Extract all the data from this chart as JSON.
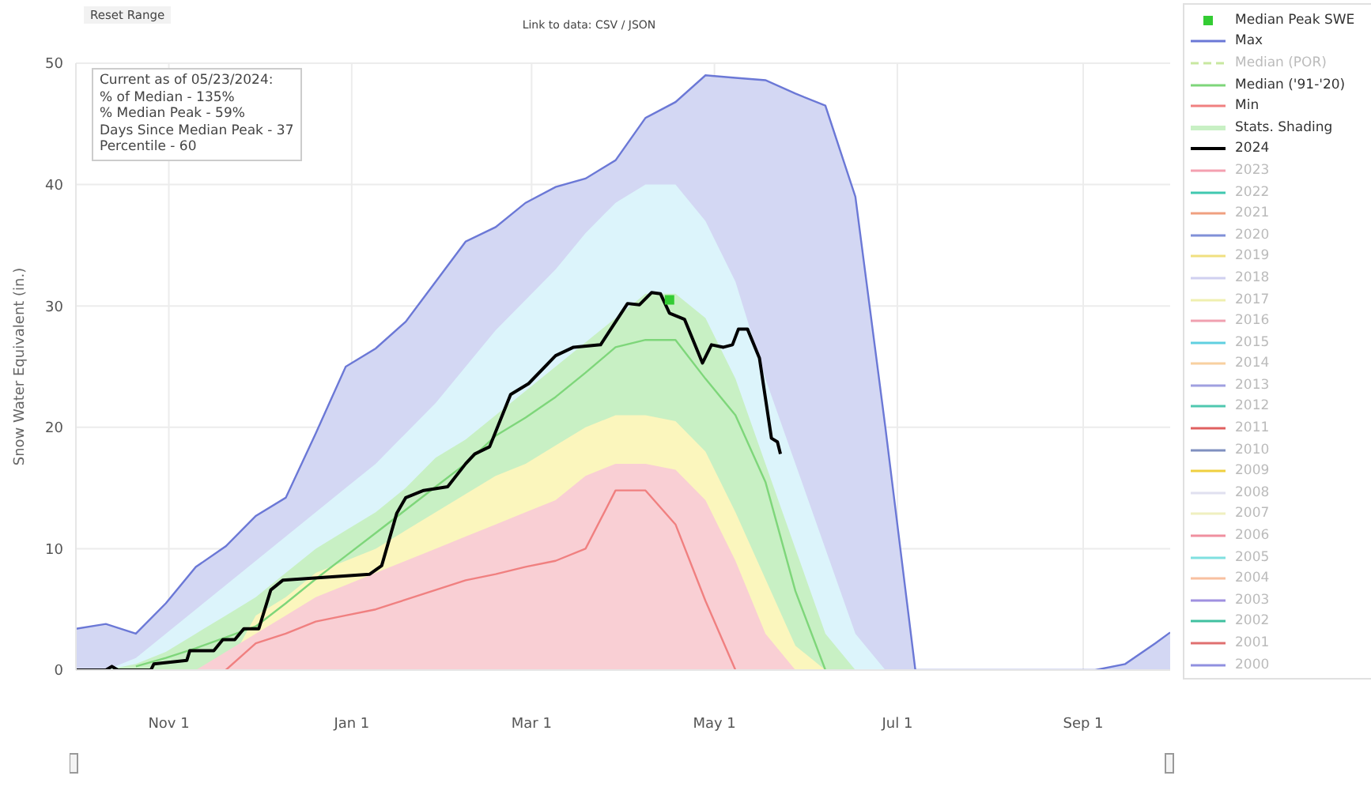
{
  "chart_data": {
    "type": "line",
    "ylabel": "Snow Water Equivalent (in.)",
    "annotations": [
      "Reset Range",
      "Link to data: CSV / JSON",
      "Current as of 05/23/2024:",
      "% of Median - 135%",
      "% Median Peak - 59%",
      "Days Since Median Peak - 37",
      "Percentile - 60"
    ],
    "x": [
      "2023-10-01",
      "2023-10-11",
      "2023-10-21",
      "2023-10-31",
      "2023-11-10",
      "2023-11-20",
      "2023-11-30",
      "2023-12-10",
      "2023-12-20",
      "2023-12-30",
      "2024-01-09",
      "2024-01-19",
      "2024-01-29",
      "2024-02-08",
      "2024-02-18",
      "2024-02-28",
      "2024-03-09",
      "2024-03-19",
      "2024-03-29",
      "2024-04-08",
      "2024-04-18",
      "2024-04-28",
      "2024-05-08",
      "2024-05-18",
      "2024-05-28",
      "2024-06-07",
      "2024-06-17",
      "2024-06-27",
      "2024-07-07",
      "2024-07-17",
      "2024-07-27",
      "2024-08-06",
      "2024-08-16",
      "2024-08-26",
      "2024-09-05",
      "2024-09-15",
      "2024-09-25",
      "2024-09-30"
    ],
    "xlim": [
      "2023-10-01",
      "2024-09-30"
    ],
    "xticks": [
      {
        "value": "2023-11-01",
        "label": "Nov 1"
      },
      {
        "value": "2024-01-01",
        "label": "Jan 1"
      },
      {
        "value": "2024-03-01",
        "label": "Mar 1"
      },
      {
        "value": "2024-05-01",
        "label": "May 1"
      },
      {
        "value": "2024-07-01",
        "label": "Jul 1"
      },
      {
        "value": "2024-09-01",
        "label": "Sep 1"
      }
    ],
    "ylim": [
      0,
      50
    ],
    "yticks": [
      0,
      10,
      20,
      30,
      40,
      50
    ],
    "grid": true,
    "legend": "right",
    "series": [
      {
        "name": "Median Peak SWE",
        "type": "scatter",
        "marker": "square",
        "color": "#33cc33",
        "x": [
          "2024-04-16"
        ],
        "values": [
          30.5
        ]
      },
      {
        "name": "Max",
        "type": "area",
        "line_style": "solid",
        "color": "#6b78d6",
        "values": [
          3.4,
          3.8,
          3.0,
          5.5,
          8.5,
          10.2,
          12.7,
          14.2,
          19.5,
          25,
          26.5,
          28.7,
          32,
          35.3,
          36.5,
          38.5,
          39.8,
          40.5,
          42,
          45.5,
          46.8,
          49,
          48.8,
          48.6,
          47.5,
          46.5,
          39,
          20,
          0,
          0,
          0,
          0,
          0,
          0,
          0,
          0.5,
          2.2,
          3.1
        ]
      },
      {
        "name": "Median (POR)",
        "color": "#c8e8a0",
        "line_style": "dashed",
        "values": [
          null,
          null,
          null,
          null,
          null,
          null,
          null,
          null,
          null,
          null,
          null,
          null,
          null,
          null,
          null,
          null,
          null,
          null,
          null,
          null,
          null,
          null,
          null,
          null,
          null,
          null,
          null,
          null,
          null,
          null,
          null,
          null,
          null,
          null,
          null,
          null,
          null,
          null
        ]
      },
      {
        "name": "Median ('91-'20)",
        "color": "#7ed67a",
        "values": [
          null,
          null,
          0.3,
          1.0,
          1.8,
          2.7,
          3.6,
          5.5,
          7.5,
          9.4,
          11.3,
          13.2,
          15.1,
          17,
          19.3,
          20.8,
          22.5,
          24.5,
          26.6,
          27.2,
          27.2,
          24,
          21,
          15.5,
          6.5,
          0,
          null,
          null,
          null,
          null,
          null,
          null,
          null,
          null,
          null,
          null,
          null,
          null
        ]
      },
      {
        "name": "Min",
        "color": "#f08080",
        "values": [
          null,
          null,
          null,
          null,
          null,
          0,
          2.2,
          3,
          4,
          4.5,
          5,
          5.8,
          6.6,
          7.4,
          7.9,
          8.5,
          9,
          10,
          14.8,
          14.8,
          12,
          5.7,
          0,
          null,
          null,
          null,
          null,
          null,
          null,
          null,
          null,
          null,
          null,
          null,
          null,
          null,
          null,
          null
        ]
      },
      {
        "name": "Stats. Shading",
        "type": "area",
        "color": "#c8f0c4",
        "values": [
          null,
          0,
          0.5,
          1.5,
          3,
          4.5,
          6,
          8,
          10,
          11.5,
          13,
          15,
          17.5,
          19,
          21,
          23,
          25,
          27,
          29,
          31,
          31,
          29,
          24,
          17,
          10,
          3,
          0,
          null,
          null,
          null,
          null,
          null,
          null,
          null,
          null,
          null,
          null,
          null
        ]
      },
      {
        "type": "area",
        "color": "#fbf6bd",
        "values": [
          null,
          null,
          null,
          null,
          null,
          0,
          4.5,
          6,
          8,
          9,
          10,
          11.5,
          13,
          14.5,
          16,
          17,
          18.5,
          20,
          21,
          21,
          20.5,
          18,
          13,
          7.5,
          2,
          0,
          null,
          null,
          null,
          null,
          null,
          null,
          null,
          null,
          null,
          null,
          null,
          null
        ]
      },
      {
        "type": "area",
        "color": "#f9cfd4",
        "values": [
          null,
          null,
          null,
          null,
          0,
          1.5,
          3,
          4.5,
          6,
          7,
          8,
          9,
          10,
          11,
          12,
          13,
          14,
          16,
          17,
          17,
          16.5,
          14,
          9,
          3,
          0,
          null,
          null,
          null,
          null,
          null,
          null,
          null,
          null,
          null,
          null,
          null,
          null,
          null
        ]
      },
      {
        "type": "area",
        "color": "#dcf4fb",
        "values": [
          null,
          0,
          1,
          3,
          5,
          7,
          9,
          11,
          13,
          15,
          17,
          19.5,
          22,
          25,
          28,
          30.5,
          33,
          36,
          38.5,
          40,
          40,
          37,
          32,
          24,
          17,
          10,
          3,
          0,
          null,
          null,
          null,
          null,
          null,
          null,
          null,
          null,
          null,
          null
        ]
      },
      {
        "name": "2024",
        "color": "#000000",
        "x": [
          "2023-10-01",
          "2023-10-11",
          "2023-10-13",
          "2023-10-15",
          "2023-10-26",
          "2023-10-27",
          "2023-11-07",
          "2023-11-08",
          "2023-11-16",
          "2023-11-19",
          "2023-11-23",
          "2023-11-26",
          "2023-12-01",
          "2023-12-05",
          "2023-12-09",
          "2024-01-07",
          "2024-01-11",
          "2024-01-16",
          "2024-01-19",
          "2024-01-25",
          "2024-02-02",
          "2024-02-08",
          "2024-02-11",
          "2024-02-16",
          "2024-02-23",
          "2024-02-29",
          "2024-03-09",
          "2024-03-15",
          "2024-03-24",
          "2024-04-02",
          "2024-04-06",
          "2024-04-10",
          "2024-04-13",
          "2024-04-16",
          "2024-04-21",
          "2024-04-27",
          "2024-04-30",
          "2024-05-04",
          "2024-05-07",
          "2024-05-09",
          "2024-05-12",
          "2024-05-16",
          "2024-05-20",
          "2024-05-22",
          "2024-05-23"
        ],
        "values": [
          0,
          0,
          0.3,
          0,
          0,
          0.5,
          0.8,
          1.6,
          1.6,
          2.5,
          2.5,
          3.4,
          3.4,
          6.6,
          7.4,
          7.9,
          8.6,
          12.9,
          14.2,
          14.8,
          15.1,
          17,
          17.8,
          18.4,
          22.7,
          23.6,
          25.9,
          26.6,
          26.8,
          30.2,
          30.1,
          31.1,
          31,
          29.4,
          28.9,
          25.3,
          26.8,
          26.6,
          26.8,
          28.1,
          28.1,
          25.7,
          19.1,
          18.8,
          17.8
        ]
      },
      {
        "name": "2023",
        "color": "#f4a0b0",
        "values": [
          null,
          null,
          null,
          null,
          null,
          null,
          null,
          null,
          null,
          null,
          null,
          null,
          null,
          null,
          null,
          null,
          null,
          null,
          null,
          null,
          null,
          null,
          null,
          null,
          null,
          null,
          null,
          null,
          null,
          null,
          null,
          null,
          null,
          null,
          null,
          null,
          null,
          null
        ]
      },
      {
        "name": "2022",
        "color": "#40c8b0",
        "values": [
          null,
          null,
          null,
          null,
          null,
          null,
          null,
          null,
          null,
          null,
          null,
          null,
          null,
          null,
          null,
          null,
          null,
          null,
          null,
          null,
          null,
          null,
          null,
          null,
          null,
          null,
          null,
          null,
          null,
          null,
          null,
          null,
          null,
          null,
          null,
          null,
          null,
          null
        ]
      },
      {
        "name": "2021",
        "color": "#f0a080",
        "values": [
          null,
          null,
          null,
          null,
          null,
          null,
          null,
          null,
          null,
          null,
          null,
          null,
          null,
          null,
          null,
          null,
          null,
          null,
          null,
          null,
          null,
          null,
          null,
          null,
          null,
          null,
          null,
          null,
          null,
          null,
          null,
          null,
          null,
          null,
          null,
          null,
          null,
          null
        ]
      },
      {
        "name": "2020",
        "color": "#8090d8",
        "values": [
          null,
          null,
          null,
          null,
          null,
          null,
          null,
          null,
          null,
          null,
          null,
          null,
          null,
          null,
          null,
          null,
          null,
          null,
          null,
          null,
          null,
          null,
          null,
          null,
          null,
          null,
          null,
          null,
          null,
          null,
          null,
          null,
          null,
          null,
          null,
          null,
          null,
          null
        ]
      },
      {
        "name": "2019",
        "color": "#f0e080",
        "values": [
          null,
          null,
          null,
          null,
          null,
          null,
          null,
          null,
          null,
          null,
          null,
          null,
          null,
          null,
          null,
          null,
          null,
          null,
          null,
          null,
          null,
          null,
          null,
          null,
          null,
          null,
          null,
          null,
          null,
          null,
          null,
          null,
          null,
          null,
          null,
          null,
          null,
          null
        ]
      },
      {
        "name": "2018",
        "color": "#d0d0f0",
        "values": [
          null,
          null,
          null,
          null,
          null,
          null,
          null,
          null,
          null,
          null,
          null,
          null,
          null,
          null,
          null,
          null,
          null,
          null,
          null,
          null,
          null,
          null,
          null,
          null,
          null,
          null,
          null,
          null,
          null,
          null,
          null,
          null,
          null,
          null,
          null,
          null,
          null,
          null
        ]
      },
      {
        "name": "2017",
        "color": "#f0f0b0",
        "values": [
          null,
          null,
          null,
          null,
          null,
          null,
          null,
          null,
          null,
          null,
          null,
          null,
          null,
          null,
          null,
          null,
          null,
          null,
          null,
          null,
          null,
          null,
          null,
          null,
          null,
          null,
          null,
          null,
          null,
          null,
          null,
          null,
          null,
          null,
          null,
          null,
          null,
          null
        ]
      },
      {
        "name": "2016",
        "color": "#f0a0b0",
        "values": [
          null,
          null,
          null,
          null,
          null,
          null,
          null,
          null,
          null,
          null,
          null,
          null,
          null,
          null,
          null,
          null,
          null,
          null,
          null,
          null,
          null,
          null,
          null,
          null,
          null,
          null,
          null,
          null,
          null,
          null,
          null,
          null,
          null,
          null,
          null,
          null,
          null,
          null
        ]
      },
      {
        "name": "2015",
        "color": "#60d0e0",
        "values": [
          null,
          null,
          null,
          null,
          null,
          null,
          null,
          null,
          null,
          null,
          null,
          null,
          null,
          null,
          null,
          null,
          null,
          null,
          null,
          null,
          null,
          null,
          null,
          null,
          null,
          null,
          null,
          null,
          null,
          null,
          null,
          null,
          null,
          null,
          null,
          null,
          null,
          null
        ]
      },
      {
        "name": "2014",
        "color": "#f8d0a0",
        "values": [
          null,
          null,
          null,
          null,
          null,
          null,
          null,
          null,
          null,
          null,
          null,
          null,
          null,
          null,
          null,
          null,
          null,
          null,
          null,
          null,
          null,
          null,
          null,
          null,
          null,
          null,
          null,
          null,
          null,
          null,
          null,
          null,
          null,
          null,
          null,
          null,
          null,
          null
        ]
      },
      {
        "name": "2013",
        "color": "#a0a0e0",
        "values": [
          null,
          null,
          null,
          null,
          null,
          null,
          null,
          null,
          null,
          null,
          null,
          null,
          null,
          null,
          null,
          null,
          null,
          null,
          null,
          null,
          null,
          null,
          null,
          null,
          null,
          null,
          null,
          null,
          null,
          null,
          null,
          null,
          null,
          null,
          null,
          null,
          null,
          null
        ]
      },
      {
        "name": "2012",
        "color": "#50c8b0",
        "values": [
          null,
          null,
          null,
          null,
          null,
          null,
          null,
          null,
          null,
          null,
          null,
          null,
          null,
          null,
          null,
          null,
          null,
          null,
          null,
          null,
          null,
          null,
          null,
          null,
          null,
          null,
          null,
          null,
          null,
          null,
          null,
          null,
          null,
          null,
          null,
          null,
          null,
          null
        ]
      },
      {
        "name": "2011",
        "color": "#e06060",
        "values": [
          null,
          null,
          null,
          null,
          null,
          null,
          null,
          null,
          null,
          null,
          null,
          null,
          null,
          null,
          null,
          null,
          null,
          null,
          null,
          null,
          null,
          null,
          null,
          null,
          null,
          null,
          null,
          null,
          null,
          null,
          null,
          null,
          null,
          null,
          null,
          null,
          null,
          null
        ]
      },
      {
        "name": "2010",
        "color": "#8090c0",
        "values": [
          null,
          null,
          null,
          null,
          null,
          null,
          null,
          null,
          null,
          null,
          null,
          null,
          null,
          null,
          null,
          null,
          null,
          null,
          null,
          null,
          null,
          null,
          null,
          null,
          null,
          null,
          null,
          null,
          null,
          null,
          null,
          null,
          null,
          null,
          null,
          null,
          null,
          null
        ]
      },
      {
        "name": "2009",
        "color": "#f0d040",
        "values": [
          null,
          null,
          null,
          null,
          null,
          null,
          null,
          null,
          null,
          null,
          null,
          null,
          null,
          null,
          null,
          null,
          null,
          null,
          null,
          null,
          null,
          null,
          null,
          null,
          null,
          null,
          null,
          null,
          null,
          null,
          null,
          null,
          null,
          null,
          null,
          null,
          null,
          null
        ]
      },
      {
        "name": "2008",
        "color": "#e0e0f0",
        "values": [
          null,
          null,
          null,
          null,
          null,
          null,
          null,
          null,
          null,
          null,
          null,
          null,
          null,
          null,
          null,
          null,
          null,
          null,
          null,
          null,
          null,
          null,
          null,
          null,
          null,
          null,
          null,
          null,
          null,
          null,
          null,
          null,
          null,
          null,
          null,
          null,
          null,
          null
        ]
      },
      {
        "name": "2007",
        "color": "#f0f0c0",
        "values": [
          null,
          null,
          null,
          null,
          null,
          null,
          null,
          null,
          null,
          null,
          null,
          null,
          null,
          null,
          null,
          null,
          null,
          null,
          null,
          null,
          null,
          null,
          null,
          null,
          null,
          null,
          null,
          null,
          null,
          null,
          null,
          null,
          null,
          null,
          null,
          null,
          null,
          null
        ]
      },
      {
        "name": "2006",
        "color": "#f090a0",
        "values": [
          null,
          null,
          null,
          null,
          null,
          null,
          null,
          null,
          null,
          null,
          null,
          null,
          null,
          null,
          null,
          null,
          null,
          null,
          null,
          null,
          null,
          null,
          null,
          null,
          null,
          null,
          null,
          null,
          null,
          null,
          null,
          null,
          null,
          null,
          null,
          null,
          null,
          null
        ]
      },
      {
        "name": "2005",
        "color": "#80e0e0",
        "values": [
          null,
          null,
          null,
          null,
          null,
          null,
          null,
          null,
          null,
          null,
          null,
          null,
          null,
          null,
          null,
          null,
          null,
          null,
          null,
          null,
          null,
          null,
          null,
          null,
          null,
          null,
          null,
          null,
          null,
          null,
          null,
          null,
          null,
          null,
          null,
          null,
          null,
          null
        ]
      },
      {
        "name": "2004",
        "color": "#f8c0a0",
        "values": [
          null,
          null,
          null,
          null,
          null,
          null,
          null,
          null,
          null,
          null,
          null,
          null,
          null,
          null,
          null,
          null,
          null,
          null,
          null,
          null,
          null,
          null,
          null,
          null,
          null,
          null,
          null,
          null,
          null,
          null,
          null,
          null,
          null,
          null,
          null,
          null,
          null,
          null
        ]
      },
      {
        "name": "2003",
        "color": "#a090e0",
        "values": [
          null,
          null,
          null,
          null,
          null,
          null,
          null,
          null,
          null,
          null,
          null,
          null,
          null,
          null,
          null,
          null,
          null,
          null,
          null,
          null,
          null,
          null,
          null,
          null,
          null,
          null,
          null,
          null,
          null,
          null,
          null,
          null,
          null,
          null,
          null,
          null,
          null,
          null
        ]
      },
      {
        "name": "2002",
        "color": "#40c0a0",
        "values": [
          null,
          null,
          null,
          null,
          null,
          null,
          null,
          null,
          null,
          null,
          null,
          null,
          null,
          null,
          null,
          null,
          null,
          null,
          null,
          null,
          null,
          null,
          null,
          null,
          null,
          null,
          null,
          null,
          null,
          null,
          null,
          null,
          null,
          null,
          null,
          null,
          null,
          null
        ]
      },
      {
        "name": "2001",
        "color": "#e07070",
        "values": [
          null,
          null,
          null,
          null,
          null,
          null,
          null,
          null,
          null,
          null,
          null,
          null,
          null,
          null,
          null,
          null,
          null,
          null,
          null,
          null,
          null,
          null,
          null,
          null,
          null,
          null,
          null,
          null,
          null,
          null,
          null,
          null,
          null,
          null,
          null,
          null,
          null,
          null
        ]
      },
      {
        "name": "2000",
        "color": "#9090e0",
        "values": [
          null,
          null,
          null,
          null,
          null,
          null,
          null,
          null,
          null,
          null,
          null,
          null,
          null,
          null,
          null,
          null,
          null,
          null,
          null,
          null,
          null,
          null,
          null,
          null,
          null,
          null,
          null,
          null,
          null,
          null,
          null,
          null,
          null,
          null,
          null,
          null,
          null,
          null
        ]
      }
    ]
  }
}
